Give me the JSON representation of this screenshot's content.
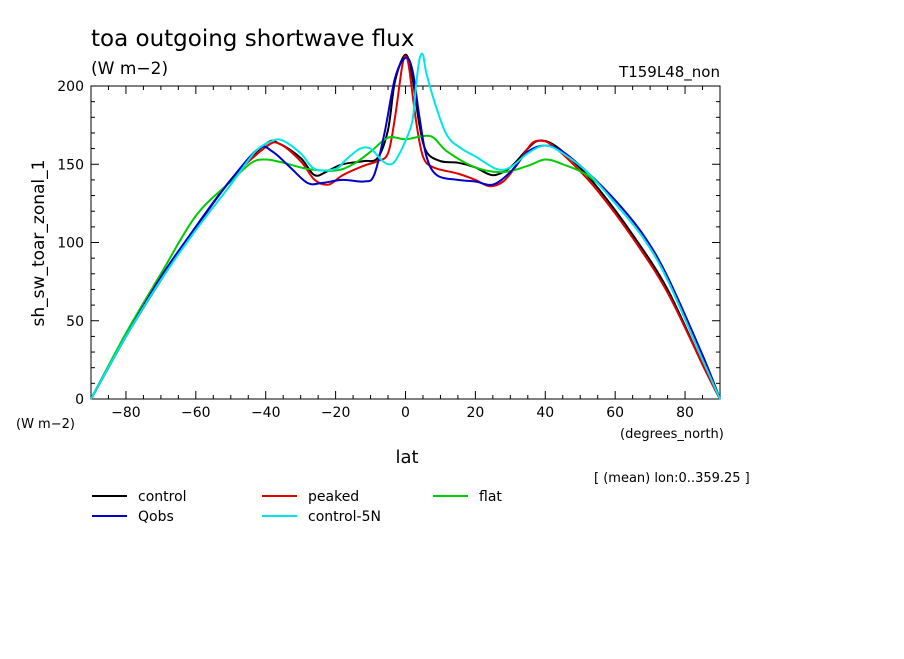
{
  "chart_data": {
    "type": "line",
    "title": "toa outgoing shortwave flux",
    "subtitle": "(W m−2)",
    "experiment": "T159L48_non",
    "xlabel": "lat",
    "x_units": "(degrees_north)",
    "ylabel": "sh_sw_toar_zonal_1",
    "y_units": "(W m−2)",
    "footnote": "[ (mean) lon:0..359.25 ]",
    "xlim": [
      -90,
      90
    ],
    "ylim": [
      0,
      200
    ],
    "x_ticks": [
      -80,
      -60,
      -40,
      -20,
      0,
      20,
      40,
      60,
      80
    ],
    "y_ticks": [
      0,
      50,
      100,
      150,
      200
    ],
    "x_tick_labels": [
      "−80",
      "−60",
      "−40",
      "−20",
      "0",
      "20",
      "40",
      "60",
      "80"
    ],
    "y_tick_labels": [
      "0",
      "50",
      "100",
      "150",
      "200"
    ],
    "grid": false,
    "legend": "bottom",
    "series": [
      {
        "name": "control",
        "color": "#000000",
        "points": [
          [
            -90,
            0
          ],
          [
            -80,
            40
          ],
          [
            -70,
            76
          ],
          [
            -60,
            110
          ],
          [
            -50,
            140
          ],
          [
            -40,
            163
          ],
          [
            -36,
            163
          ],
          [
            -30,
            154
          ],
          [
            -26,
            143
          ],
          [
            -22,
            146
          ],
          [
            -18,
            150
          ],
          [
            -12,
            152
          ],
          [
            -8,
            154
          ],
          [
            -5,
            172
          ],
          [
            -3,
            203
          ],
          [
            0,
            220
          ],
          [
            2,
            205
          ],
          [
            4,
            175
          ],
          [
            6,
            158
          ],
          [
            10,
            152
          ],
          [
            15,
            151
          ],
          [
            20,
            148
          ],
          [
            25,
            143
          ],
          [
            30,
            148
          ],
          [
            35,
            160
          ],
          [
            38,
            165
          ],
          [
            42,
            163
          ],
          [
            48,
            152
          ],
          [
            55,
            135
          ],
          [
            65,
            105
          ],
          [
            75,
            70
          ],
          [
            85,
            22
          ],
          [
            90,
            0
          ]
        ]
      },
      {
        "name": "peaked",
        "color": "#e00000",
        "points": [
          [
            -90,
            0
          ],
          [
            -80,
            40
          ],
          [
            -70,
            76
          ],
          [
            -60,
            109
          ],
          [
            -50,
            140
          ],
          [
            -40,
            161
          ],
          [
            -36,
            163
          ],
          [
            -30,
            152
          ],
          [
            -26,
            140
          ],
          [
            -22,
            137
          ],
          [
            -18,
            143
          ],
          [
            -12,
            149
          ],
          [
            -8,
            152
          ],
          [
            -5,
            157
          ],
          [
            -3,
            180
          ],
          [
            -1,
            212
          ],
          [
            0,
            219
          ],
          [
            1,
            212
          ],
          [
            3,
            178
          ],
          [
            5,
            155
          ],
          [
            8,
            148
          ],
          [
            15,
            144
          ],
          [
            20,
            140
          ],
          [
            24,
            136
          ],
          [
            28,
            139
          ],
          [
            32,
            150
          ],
          [
            36,
            163
          ],
          [
            39,
            165
          ],
          [
            42,
            162
          ],
          [
            48,
            150
          ],
          [
            55,
            133
          ],
          [
            65,
            103
          ],
          [
            75,
            68
          ],
          [
            85,
            22
          ],
          [
            90,
            0
          ]
        ]
      },
      {
        "name": "flat",
        "color": "#00cc00",
        "points": [
          [
            -90,
            0
          ],
          [
            -80,
            42
          ],
          [
            -70,
            80
          ],
          [
            -60,
            117
          ],
          [
            -50,
            139
          ],
          [
            -44,
            151
          ],
          [
            -40,
            153
          ],
          [
            -35,
            151
          ],
          [
            -28,
            147
          ],
          [
            -20,
            146
          ],
          [
            -15,
            150
          ],
          [
            -10,
            158
          ],
          [
            -5,
            167
          ],
          [
            0,
            166
          ],
          [
            5,
            168
          ],
          [
            8,
            167
          ],
          [
            12,
            158
          ],
          [
            20,
            148
          ],
          [
            28,
            145
          ],
          [
            35,
            149
          ],
          [
            40,
            153
          ],
          [
            45,
            150
          ],
          [
            52,
            143
          ],
          [
            60,
            127
          ],
          [
            68,
            105
          ],
          [
            75,
            78
          ],
          [
            85,
            28
          ],
          [
            90,
            0
          ]
        ]
      },
      {
        "name": "Qobs",
        "color": "#0000cc",
        "points": [
          [
            -90,
            0
          ],
          [
            -80,
            40
          ],
          [
            -70,
            78
          ],
          [
            -60,
            110
          ],
          [
            -50,
            140
          ],
          [
            -42,
            160
          ],
          [
            -38,
            158
          ],
          [
            -33,
            148
          ],
          [
            -28,
            138
          ],
          [
            -24,
            138
          ],
          [
            -18,
            140
          ],
          [
            -12,
            139
          ],
          [
            -9,
            143
          ],
          [
            -6,
            170
          ],
          [
            -3,
            205
          ],
          [
            0,
            218
          ],
          [
            2,
            210
          ],
          [
            4,
            180
          ],
          [
            6,
            155
          ],
          [
            9,
            143
          ],
          [
            15,
            140
          ],
          [
            20,
            139
          ],
          [
            25,
            137
          ],
          [
            30,
            145
          ],
          [
            35,
            158
          ],
          [
            40,
            162
          ],
          [
            45,
            158
          ],
          [
            52,
            145
          ],
          [
            60,
            127
          ],
          [
            68,
            105
          ],
          [
            75,
            78
          ],
          [
            85,
            28
          ],
          [
            90,
            0
          ]
        ]
      },
      {
        "name": "control-5N",
        "color": "#00e6e6",
        "points": [
          [
            -90,
            0
          ],
          [
            -80,
            40
          ],
          [
            -70,
            76
          ],
          [
            -60,
            108
          ],
          [
            -50,
            137
          ],
          [
            -43,
            158
          ],
          [
            -38,
            165
          ],
          [
            -35,
            165
          ],
          [
            -30,
            157
          ],
          [
            -26,
            147
          ],
          [
            -20,
            147
          ],
          [
            -17,
            153
          ],
          [
            -13,
            160
          ],
          [
            -10,
            160
          ],
          [
            -7,
            153
          ],
          [
            -5,
            150
          ],
          [
            -3,
            152
          ],
          [
            0,
            165
          ],
          [
            2,
            178
          ],
          [
            3,
            200
          ],
          [
            4,
            217
          ],
          [
            5,
            220
          ],
          [
            6,
            208
          ],
          [
            9,
            185
          ],
          [
            12,
            168
          ],
          [
            16,
            160
          ],
          [
            20,
            155
          ],
          [
            26,
            147
          ],
          [
            30,
            148
          ],
          [
            35,
            157
          ],
          [
            40,
            162
          ],
          [
            45,
            157
          ],
          [
            52,
            145
          ],
          [
            60,
            125
          ],
          [
            68,
            103
          ],
          [
            75,
            76
          ],
          [
            85,
            25
          ],
          [
            90,
            0
          ]
        ]
      }
    ]
  }
}
